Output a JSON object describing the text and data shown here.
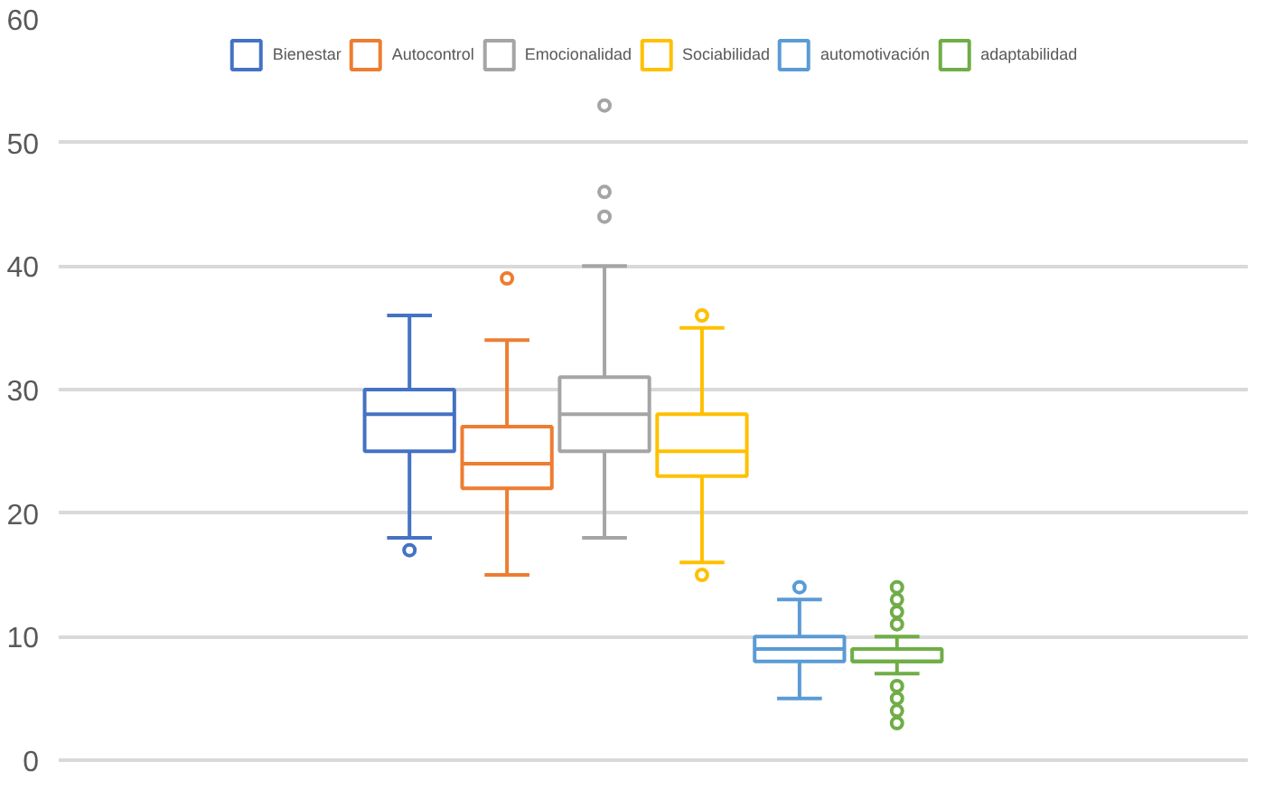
{
  "chart_data": {
    "type": "box",
    "categories": [
      null
    ],
    "ylim": [
      0,
      60
    ],
    "yticks": [
      0,
      10,
      20,
      30,
      40,
      50,
      60
    ],
    "grid": "y",
    "legend": "top",
    "tick_labels": "y",
    "series": [
      {
        "name": "Bienestar",
        "color": "#4472c4",
        "boxes": [
          {
            "low": 18,
            "q1": 25,
            "median": 28,
            "q3": 30,
            "high": 36,
            "outliers": [
              17
            ]
          }
        ]
      },
      {
        "name": "Autocontrol",
        "color": "#ed7d31",
        "boxes": [
          {
            "low": 15,
            "q1": 22,
            "median": 24,
            "q3": 27,
            "high": 34,
            "outliers": [
              39
            ]
          }
        ]
      },
      {
        "name": "Emocionalidad",
        "color": "#a5a5a5",
        "boxes": [
          {
            "low": 18,
            "q1": 25,
            "median": 28,
            "q3": 31,
            "high": 40,
            "outliers": [
              44,
              46,
              53
            ]
          }
        ]
      },
      {
        "name": "Sociabilidad",
        "color": "#ffc000",
        "boxes": [
          {
            "low": 16,
            "q1": 23,
            "median": 25,
            "q3": 28,
            "high": 35,
            "outliers": [
              15,
              36
            ]
          }
        ]
      },
      {
        "name": "automotivación",
        "color": "#5b9bd5",
        "boxes": [
          {
            "low": 5,
            "q1": 8,
            "median": 9,
            "q3": 10,
            "high": 13,
            "outliers": [
              14
            ]
          }
        ]
      },
      {
        "name": "adaptabilidad",
        "color": "#70ad47",
        "boxes": [
          {
            "low": 7,
            "q1": 8,
            "median": 8,
            "q3": 9,
            "high": 10,
            "outliers": [
              3,
              4,
              5,
              6,
              11,
              12,
              13,
              14
            ]
          }
        ]
      }
    ]
  }
}
